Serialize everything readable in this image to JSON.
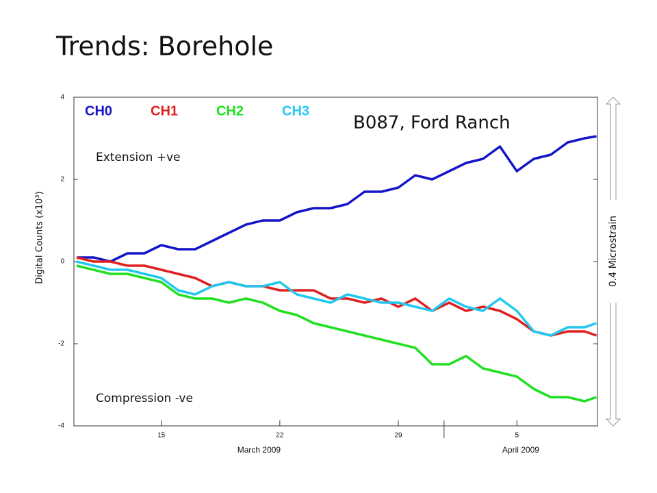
{
  "chart_data": {
    "type": "line",
    "title": "Trends: Borehole",
    "annotation": "B087, Ford Ranch",
    "annotation_top": "Extension +ve",
    "annotation_bottom": "Compression -ve",
    "y_label": "Digital Counts (x10³)",
    "right_label": "0.4 Microstrain",
    "x": [
      10,
      11,
      12,
      13,
      14,
      15,
      16,
      17,
      18,
      19,
      20,
      21,
      22,
      23,
      24,
      25,
      26,
      27,
      28,
      29,
      30,
      31,
      32,
      33,
      34,
      35,
      36,
      37,
      38,
      39,
      40,
      40.7
    ],
    "series": [
      {
        "name": "CH0",
        "color": "#1414c8",
        "values": [
          0.1,
          0.1,
          0.0,
          0.2,
          0.2,
          0.4,
          0.3,
          0.3,
          0.5,
          0.7,
          0.9,
          1.0,
          1.0,
          1.2,
          1.3,
          1.3,
          1.4,
          1.7,
          1.7,
          1.8,
          2.1,
          2.0,
          2.2,
          2.4,
          2.5,
          2.8,
          2.2,
          2.5,
          2.6,
          2.9,
          3.0,
          3.05
        ]
      },
      {
        "name": "CH1",
        "color": "#e02020",
        "values": [
          0.1,
          0.0,
          0.0,
          -0.1,
          -0.1,
          -0.2,
          -0.3,
          -0.4,
          -0.6,
          -0.5,
          -0.6,
          -0.6,
          -0.7,
          -0.7,
          -0.7,
          -0.9,
          -0.9,
          -1.0,
          -0.9,
          -1.1,
          -0.9,
          -1.2,
          -1.0,
          -1.2,
          -1.1,
          -1.2,
          -1.4,
          -1.7,
          -1.8,
          -1.7,
          -1.7,
          -1.8
        ]
      },
      {
        "name": "CH2",
        "color": "#20e020",
        "values": [
          -0.1,
          -0.2,
          -0.3,
          -0.3,
          -0.4,
          -0.5,
          -0.8,
          -0.9,
          -0.9,
          -1.0,
          -0.9,
          -1.0,
          -1.2,
          -1.3,
          -1.5,
          -1.6,
          -1.7,
          -1.8,
          -1.9,
          -2.0,
          -2.1,
          -2.5,
          -2.5,
          -2.3,
          -2.6,
          -2.7,
          -2.8,
          -3.1,
          -3.3,
          -3.3,
          -3.4,
          -3.3
        ]
      },
      {
        "name": "CH3",
        "color": "#20c8f0",
        "values": [
          0.0,
          -0.1,
          -0.2,
          -0.2,
          -0.3,
          -0.4,
          -0.7,
          -0.8,
          -0.6,
          -0.5,
          -0.6,
          -0.6,
          -0.5,
          -0.8,
          -0.9,
          -1.0,
          -0.8,
          -0.9,
          -1.0,
          -1.0,
          -1.1,
          -1.2,
          -0.9,
          -1.1,
          -1.2,
          -0.9,
          -1.2,
          -1.7,
          -1.8,
          -1.6,
          -1.6,
          -1.5
        ]
      }
    ],
    "xlim": [
      9.84,
      40.76
    ],
    "xticks": [
      15,
      22,
      29,
      {
        "value": 36,
        "label": "5"
      }
    ],
    "xgroups": [
      {
        "label": "March 2009",
        "start": 9.84,
        "end": 31.7
      },
      {
        "label": "April 2009",
        "start": 31.7,
        "end": 40.76
      }
    ],
    "ylim": [
      -4,
      4
    ],
    "yticks": [
      4,
      2,
      0,
      -2,
      -4
    ]
  }
}
